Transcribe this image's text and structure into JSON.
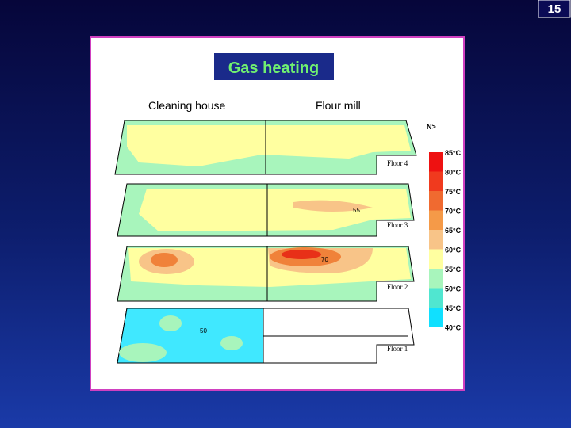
{
  "page_number": "15",
  "title": "Gas heating",
  "buildings": [
    "Cleaning house",
    "Flour mill"
  ],
  "north": "N>",
  "floors": [
    "Floor 4",
    "Floor 3",
    "Floor 2",
    "Floor 1"
  ],
  "contour_labels": [
    "55",
    "70",
    "50"
  ],
  "legend": [
    "85°C",
    "80°C",
    "75°C",
    "70°C",
    "65°C",
    "60°C",
    "55°C",
    "50°C",
    "45°C",
    "40°C"
  ]
}
